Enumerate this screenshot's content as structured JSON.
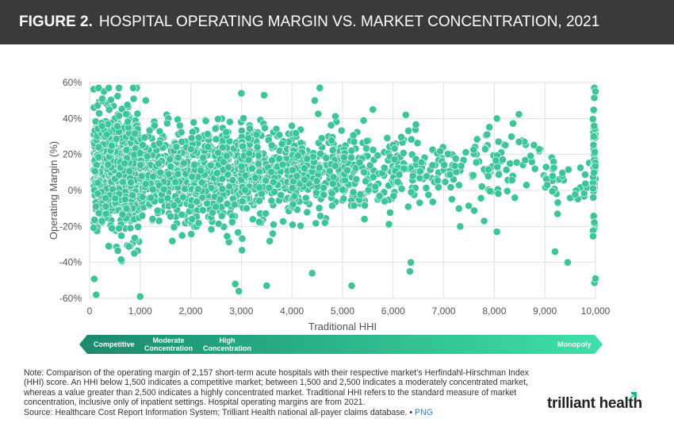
{
  "header": {
    "figure_label": "FIGURE 2.",
    "title": "HOSPITAL OPERATING MARGIN VS. MARKET CONCENTRATION, 2021"
  },
  "chart_data": {
    "type": "scatter",
    "title": "HOSPITAL OPERATING MARGIN VS. MARKET CONCENTRATION, 2021",
    "xlabel": "Traditional HHI",
    "ylabel": "Operating Margin (%)",
    "xlim": [
      0,
      10000
    ],
    "ylim": [
      -60,
      60
    ],
    "x_ticks": [
      0,
      1000,
      2000,
      3000,
      4000,
      5000,
      6000,
      7000,
      8000,
      9000,
      10000
    ],
    "x_tick_labels": [
      "0",
      "1,000",
      "2,000",
      "3,000",
      "4,000",
      "5,000",
      "6,000",
      "7,000",
      "8,000",
      "9,000",
      "10,000"
    ],
    "y_ticks": [
      -60,
      -40,
      -20,
      0,
      20,
      40,
      60
    ],
    "y_tick_labels": [
      "-60%",
      "-40%",
      "-20%",
      "0%",
      "20%",
      "40%",
      "60%"
    ],
    "grid": "horizontal and vertical",
    "point_color": "#3cc49a",
    "n_points": 2157,
    "notable_points": [
      {
        "x": 380,
        "y": 57
      },
      {
        "x": 580,
        "y": 57
      },
      {
        "x": 3000,
        "y": 54
      },
      {
        "x": 3450,
        "y": 53
      },
      {
        "x": 4550,
        "y": 57
      },
      {
        "x": 4450,
        "y": 50
      },
      {
        "x": 5600,
        "y": 45
      },
      {
        "x": 6250,
        "y": 42
      },
      {
        "x": 8050,
        "y": 40
      },
      {
        "x": 10000,
        "y": 55
      },
      {
        "x": 6350,
        "y": -40
      },
      {
        "x": 6330,
        "y": -45
      },
      {
        "x": 4400,
        "y": -46
      },
      {
        "x": 5180,
        "y": -53
      },
      {
        "x": 3500,
        "y": -53
      },
      {
        "x": 2880,
        "y": -52
      },
      {
        "x": 2950,
        "y": -56
      },
      {
        "x": 1000,
        "y": -59
      },
      {
        "x": 130,
        "y": -58
      },
      {
        "x": 9450,
        "y": -40
      },
      {
        "x": 9200,
        "y": -34
      },
      {
        "x": 10000,
        "y": -49
      },
      {
        "x": 8050,
        "y": -23
      },
      {
        "x": 7800,
        "y": -17
      }
    ],
    "density_clusters": [
      {
        "x_range": [
          80,
          1000
        ],
        "y_mean": 10,
        "y_sd": 17,
        "count": 700
      },
      {
        "x_range": [
          1000,
          2000
        ],
        "y_mean": 9,
        "y_sd": 13,
        "count": 330
      },
      {
        "x_range": [
          2000,
          3000
        ],
        "y_mean": 8,
        "y_sd": 14,
        "count": 300
      },
      {
        "x_range": [
          3000,
          4000
        ],
        "y_mean": 10,
        "y_sd": 13,
        "count": 250
      },
      {
        "x_range": [
          4000,
          5000
        ],
        "y_mean": 10,
        "y_sd": 12,
        "count": 200
      },
      {
        "x_range": [
          5000,
          6000
        ],
        "y_mean": 9,
        "y_sd": 12,
        "count": 130
      },
      {
        "x_range": [
          6000,
          7000
        ],
        "y_mean": 10,
        "y_sd": 11,
        "count": 90
      },
      {
        "x_range": [
          7000,
          8000
        ],
        "y_mean": 10,
        "y_sd": 10,
        "count": 60
      },
      {
        "x_range": [
          8000,
          9000
        ],
        "y_mean": 11,
        "y_sd": 10,
        "count": 40
      },
      {
        "x_range": [
          9000,
          9900
        ],
        "y_mean": 6,
        "y_sd": 9,
        "count": 35
      },
      {
        "x_range": [
          9950,
          10000
        ],
        "y_mean": 15,
        "y_sd": 20,
        "count": 60
      }
    ]
  },
  "scale_bar": {
    "competitive": "Competitive",
    "moderate_line1": "Moderate",
    "moderate_line2": "Concentration",
    "high_line1": "High",
    "high_line2": "Concentration",
    "monopoly": "Monopoly",
    "color_start": "#1a8a6c",
    "color_end": "#3ee0a8"
  },
  "note": {
    "text": "Note: Comparison of the operating margin of 2,157 short-term acute hospitals with their respective market’s Herfindahl-Hirschman Index (HHI) score. An HHI below 1,500 indicates a competitive market; between 1,500 and 2,500 indicates a moderately concentrated market, whereas a value greater than 2,500 indicates a highly concentrated market. Traditional HHI refers to the standard measure of market concentration, inclusive only of inpatient settings. Hospital operating margins are from 2021.",
    "source": "Source: Healthcare Cost Report Information System; Trilliant Health national all-payer claims database. •",
    "png_link": "PNG"
  },
  "logo": {
    "text": "trilliant health"
  }
}
